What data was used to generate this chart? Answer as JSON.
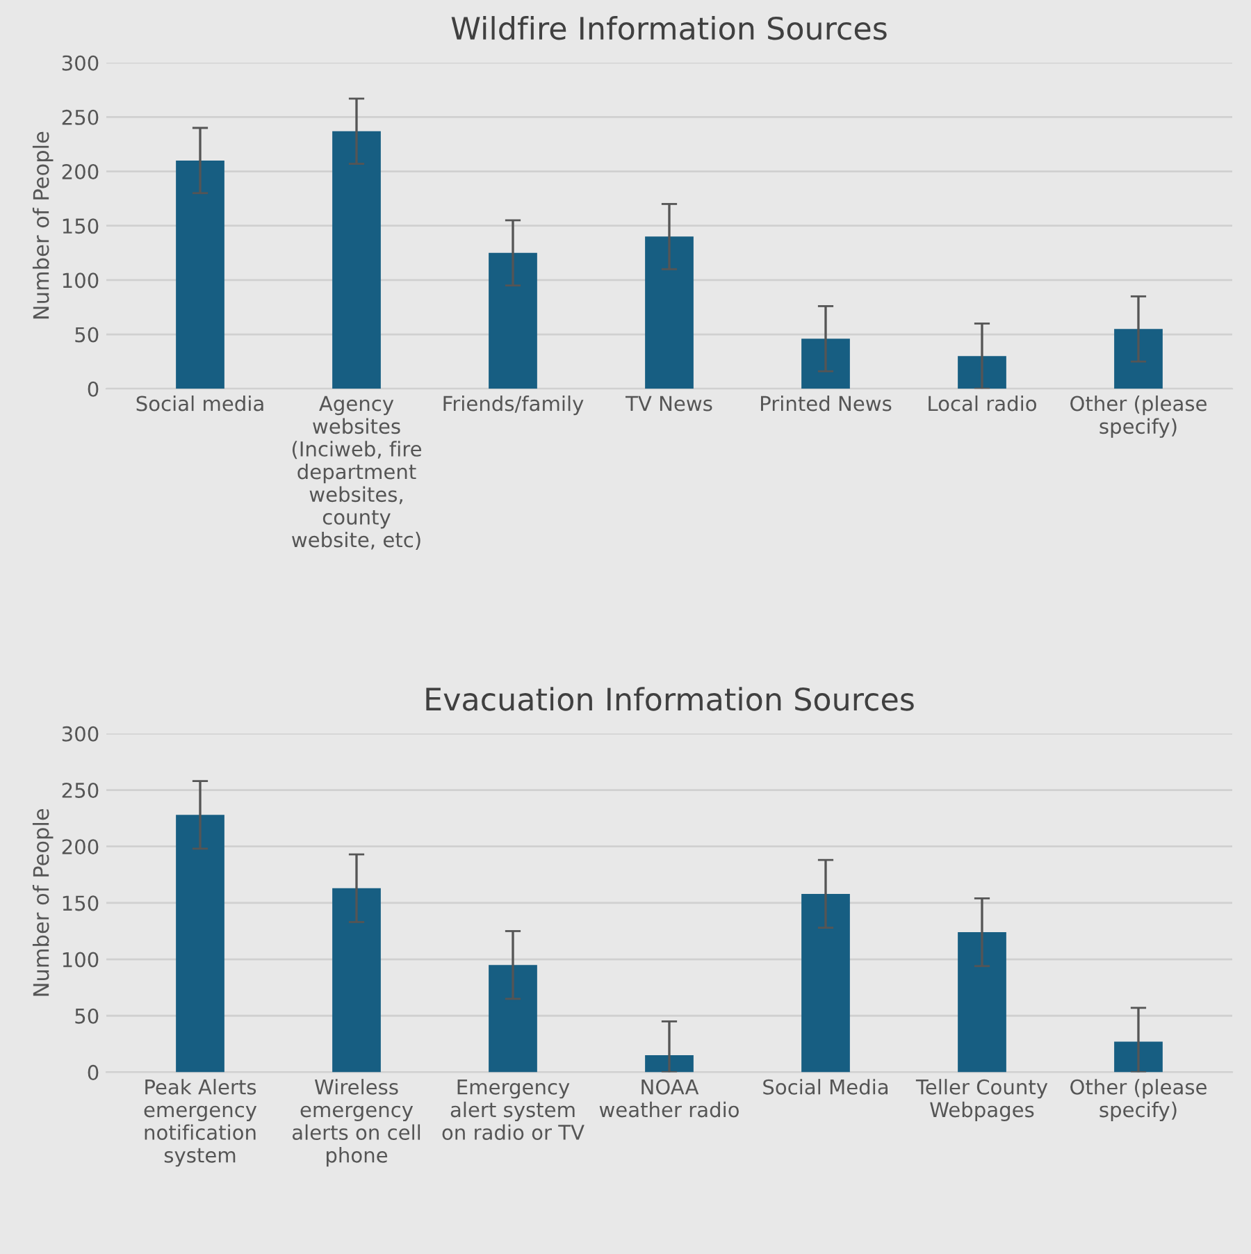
{
  "chart_data": [
    {
      "type": "bar",
      "title": "Wildfire Information Sources",
      "ylabel": "Number of People",
      "categories": [
        "Social media",
        "Agency websites (Inciweb, fire department websites, county website, etc)",
        "Friends/family",
        "TV News",
        "Printed News",
        "Local radio",
        "Other (please specify)"
      ],
      "values": [
        210,
        237,
        125,
        140,
        46,
        30,
        55
      ],
      "errors": [
        30,
        30,
        30,
        30,
        30,
        30,
        30
      ],
      "color": "#175e82",
      "ylim": [
        0,
        300
      ],
      "yticks": [
        0,
        50,
        100,
        150,
        200,
        250,
        300
      ],
      "grid": "y"
    },
    {
      "type": "bar",
      "title": "Evacuation Information Sources",
      "ylabel": "Number of People",
      "categories": [
        "Peak Alerts emergency notification system",
        "Wireless emergency alerts on cell phone",
        "Emergency alert system on radio or TV",
        "NOAA weather radio",
        "Social Media",
        "Teller County Webpages",
        "Other (please specify)"
      ],
      "values": [
        228,
        163,
        95,
        15,
        158,
        124,
        27
      ],
      "errors": [
        30,
        30,
        30,
        [
          0,
          45
        ],
        30,
        30,
        [
          0,
          57
        ]
      ],
      "color": "#175e82",
      "ylim": [
        0,
        300
      ],
      "yticks": [
        0,
        50,
        100,
        150,
        200,
        250,
        300
      ],
      "grid": "y"
    }
  ]
}
